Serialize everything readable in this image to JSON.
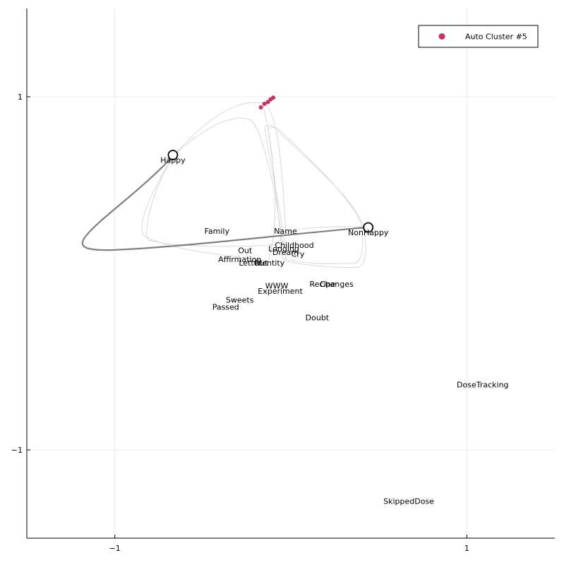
{
  "chart_data": {
    "type": "scatter",
    "title": "",
    "xlabel": "",
    "ylabel": "",
    "xlim": [
      -1.5,
      1.5
    ],
    "ylim": [
      -1.5,
      1.5
    ],
    "grid": true,
    "legend_position": "top-right",
    "x_ticks": [
      {
        "value": -1,
        "label": "−1"
      },
      {
        "value": 1,
        "label": "1"
      }
    ],
    "y_ticks": [
      {
        "value": 1,
        "label": "1"
      },
      {
        "value": -1,
        "label": "−1"
      }
    ],
    "series": [
      {
        "name": "Auto Cluster #5",
        "color": "#c8325f",
        "points": [
          {
            "x": -0.17,
            "y": 0.94
          },
          {
            "x": -0.15,
            "y": 0.96
          },
          {
            "x": -0.13,
            "y": 0.97
          },
          {
            "x": -0.115,
            "y": 0.985
          },
          {
            "x": -0.1,
            "y": 0.995
          }
        ]
      }
    ],
    "anchors": [
      {
        "label": "Happy",
        "x": -0.67,
        "y": 0.67
      },
      {
        "label": "NonHappy",
        "x": 0.44,
        "y": 0.26
      }
    ],
    "labels": [
      {
        "text": "Family",
        "x": -0.42,
        "y": 0.24
      },
      {
        "text": "Name",
        "x": -0.03,
        "y": 0.24
      },
      {
        "text": "Childhood",
        "x": 0.02,
        "y": 0.16
      },
      {
        "text": "Longing",
        "x": -0.04,
        "y": 0.14
      },
      {
        "text": "Out",
        "x": -0.26,
        "y": 0.13
      },
      {
        "text": "Dream",
        "x": -0.03,
        "y": 0.12
      },
      {
        "text": "Cry",
        "x": 0.04,
        "y": 0.11
      },
      {
        "text": "Affirmation",
        "x": -0.29,
        "y": 0.08
      },
      {
        "text": "Letter",
        "x": -0.23,
        "y": 0.06
      },
      {
        "text": "Out",
        "x": -0.17,
        "y": 0.06
      },
      {
        "text": "Identity",
        "x": -0.12,
        "y": 0.06
      },
      {
        "text": "Recipe",
        "x": 0.18,
        "y": -0.06
      },
      {
        "text": "Changes",
        "x": 0.26,
        "y": -0.06
      },
      {
        "text": "WWW",
        "x": -0.08,
        "y": -0.07
      },
      {
        "text": "Experiment",
        "x": -0.06,
        "y": -0.1
      },
      {
        "text": "Sweets",
        "x": -0.29,
        "y": -0.15
      },
      {
        "text": "Passed",
        "x": -0.37,
        "y": -0.19
      },
      {
        "text": "Doubt",
        "x": 0.15,
        "y": -0.25
      },
      {
        "text": "DoseTracking",
        "x": 1.09,
        "y": -0.63
      },
      {
        "text": "SkippedDose",
        "x": 0.67,
        "y": -1.29
      }
    ]
  }
}
